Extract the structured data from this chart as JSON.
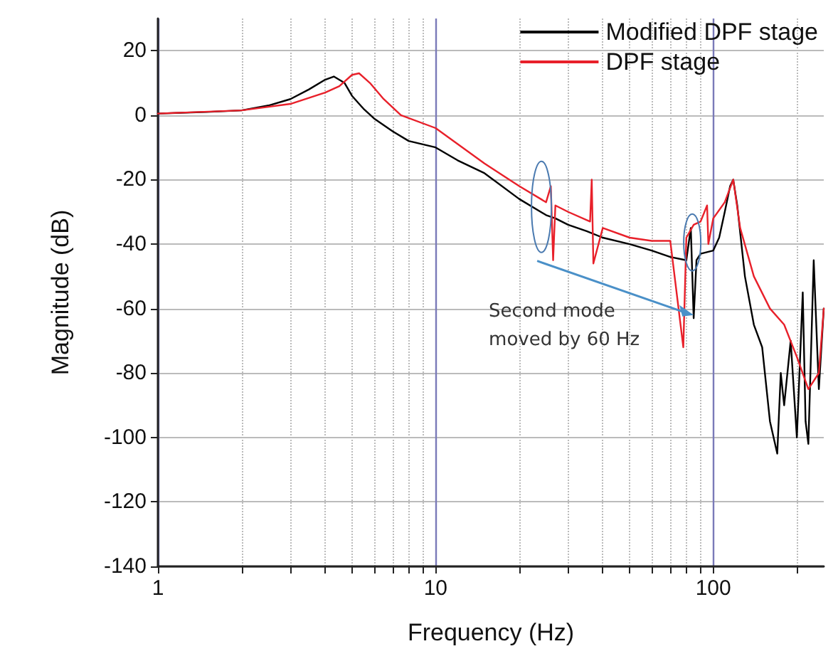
{
  "chart_data": {
    "type": "line",
    "xlabel": "Frequency (Hz)",
    "ylabel": "Magnitude (dB)",
    "log": "x",
    "xlim": [
      1,
      250
    ],
    "ylim": [
      -140,
      30
    ],
    "xticks": [
      1,
      {
        "value": 2,
        "label": null
      },
      {
        "value": 3,
        "label": null
      },
      {
        "value": 4,
        "label": null
      },
      {
        "value": 5,
        "label": null
      },
      {
        "value": 6,
        "label": null
      },
      {
        "value": 7,
        "label": null
      },
      {
        "value": 8,
        "label": null
      },
      {
        "value": 9,
        "label": null
      },
      10,
      {
        "value": 20,
        "label": null
      },
      {
        "value": 30,
        "label": null
      },
      {
        "value": 40,
        "label": null
      },
      {
        "value": 50,
        "label": null
      },
      {
        "value": 60,
        "label": null
      },
      {
        "value": 70,
        "label": null
      },
      {
        "value": 80,
        "label": null
      },
      {
        "value": 90,
        "label": null
      },
      100,
      {
        "value": 200,
        "label": null
      }
    ],
    "yticks": [
      -140,
      -120,
      -100,
      -80,
      -60,
      -40,
      -20,
      0,
      20
    ],
    "grid": true,
    "legend": "top right",
    "marker": "none",
    "line_style": "solid",
    "annotations": [
      {
        "text": "Second mode\nmoved by 60 Hz",
        "x": 85,
        "y": -62
      }
    ],
    "series": [
      {
        "name": "Modified DPF stage",
        "color": "#000000",
        "x": [
          1,
          1.5,
          2,
          2.5,
          3,
          3.5,
          4,
          4.3,
          4.7,
          5,
          5.5,
          6,
          7,
          8,
          10,
          12,
          15,
          20,
          25,
          27,
          30,
          35,
          40,
          50,
          60,
          70,
          80,
          83,
          85,
          87,
          90,
          100,
          105,
          110,
          115,
          118,
          122,
          130,
          140,
          150,
          160,
          170,
          175,
          180,
          190,
          200,
          210,
          215,
          220,
          230,
          240,
          250
        ],
        "values": [
          0.5,
          1,
          1.5,
          3,
          5,
          8,
          11,
          12,
          10,
          6,
          2,
          -1,
          -5,
          -8,
          -10,
          -14,
          -18,
          -26,
          -31,
          -32,
          -34,
          -36,
          -38,
          -40,
          -42,
          -44,
          -45,
          -35,
          -63,
          -45,
          -43,
          -42,
          -38,
          -30,
          -22,
          -20,
          -28,
          -50,
          -65,
          -72,
          -95,
          -105,
          -80,
          -90,
          -70,
          -100,
          -55,
          -95,
          -102,
          -45,
          -85,
          -60
        ]
      },
      {
        "name": "DPF stage",
        "color": "#e8202a",
        "x": [
          1,
          2,
          3,
          4,
          4.5,
          5,
          5.3,
          5.8,
          6.5,
          7.5,
          10,
          15,
          20,
          25,
          26,
          26.5,
          27,
          30,
          36,
          36.5,
          37,
          40,
          50,
          60,
          70,
          78,
          80,
          85,
          90,
          95,
          96,
          100,
          110,
          118,
          125,
          140,
          160,
          180,
          200,
          220,
          240,
          250
        ],
        "values": [
          0.5,
          1.5,
          3.5,
          7,
          9,
          12.5,
          13,
          10,
          5,
          0,
          -4,
          -15,
          -22,
          -27,
          -22,
          -45,
          -28,
          -30,
          -33,
          -20,
          -46,
          -35,
          -38,
          -39,
          -39,
          -72,
          -38,
          -34,
          -33,
          -28,
          -40,
          -32,
          -27,
          -20,
          -35,
          -50,
          -60,
          -65,
          -75,
          -85,
          -80,
          -60
        ]
      }
    ]
  }
}
